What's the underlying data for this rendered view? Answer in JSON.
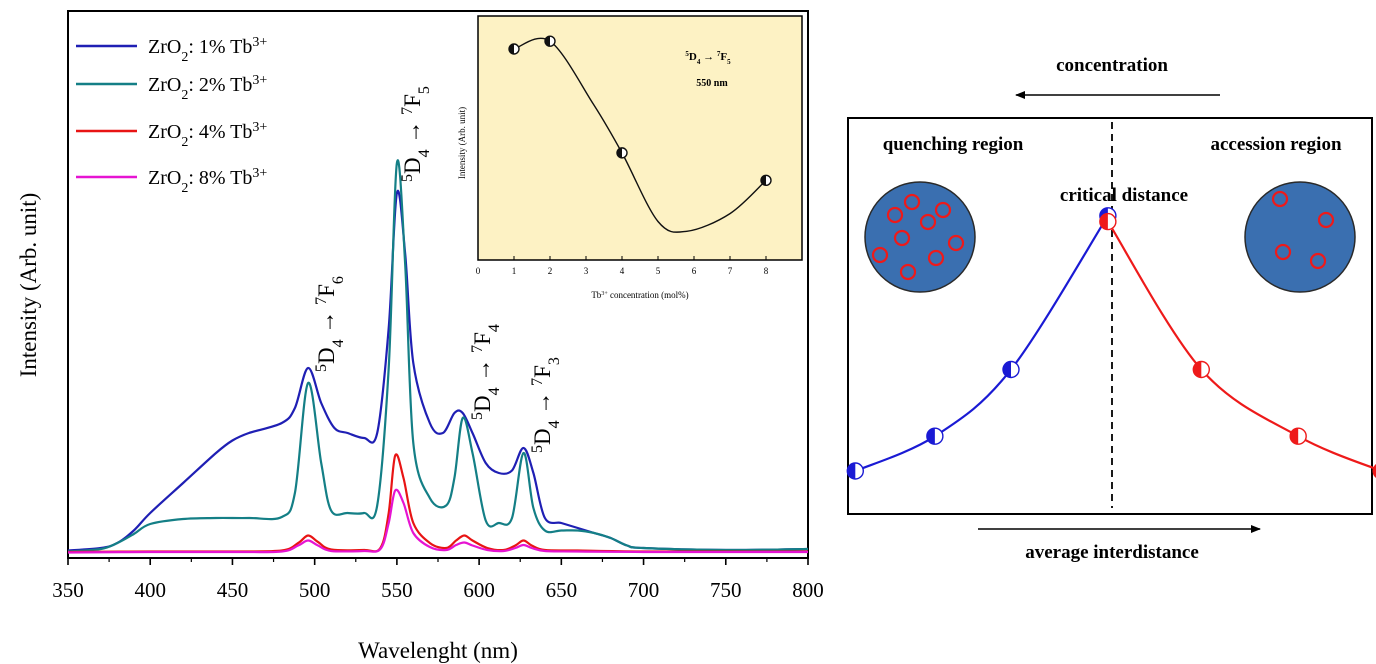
{
  "chart_data": [
    {
      "type": "line",
      "xlabel": "Wavelenght (nm)",
      "ylabel": "Intensity (Arb. unit)",
      "xlim": [
        350,
        800
      ],
      "xticks": [
        350,
        400,
        450,
        500,
        550,
        600,
        650,
        700,
        750,
        800
      ],
      "y_ticks_shown": false,
      "legend_position": "top-left",
      "peak_labels": [
        {
          "upper": "5",
          "main": "D",
          "sub": "4",
          "arrow": " → ",
          "upper2": "7",
          "main2": "F",
          "sub2": "6",
          "x": 496
        },
        {
          "upper": "5",
          "main": "D",
          "sub": "4",
          "arrow": " → ",
          "upper2": "7",
          "main2": "F",
          "sub2": "5",
          "x": 550
        },
        {
          "upper": "5",
          "main": "D",
          "sub": "4",
          "arrow": " → ",
          "upper2": "7",
          "main2": "F",
          "sub2": "4",
          "x": 590
        },
        {
          "upper": "5",
          "main": "D",
          "sub": "4",
          "arrow": " → ",
          "upper2": "7",
          "main2": "F",
          "sub2": "3",
          "x": 627
        }
      ],
      "series": [
        {
          "name_main": "ZrO",
          "name_sub": "2",
          "name_rest": ": 1% Tb",
          "name_sup": "3+",
          "color": "#1f1fb4",
          "points": [
            [
              350,
              0.5
            ],
            [
              370,
              1
            ],
            [
              380,
              2
            ],
            [
              390,
              4.5
            ],
            [
              400,
              8
            ],
            [
              420,
              14
            ],
            [
              440,
              20
            ],
            [
              450,
              22.5
            ],
            [
              460,
              24
            ],
            [
              480,
              26
            ],
            [
              488,
              29
            ],
            [
              496,
              37
            ],
            [
              504,
              30
            ],
            [
              512,
              25
            ],
            [
              520,
              24
            ],
            [
              530,
              23
            ],
            [
              538,
              24
            ],
            [
              545,
              45
            ],
            [
              550,
              72
            ],
            [
              555,
              60
            ],
            [
              560,
              38
            ],
            [
              570,
              26
            ],
            [
              578,
              24
            ],
            [
              585,
              28
            ],
            [
              590,
              28
            ],
            [
              596,
              24
            ],
            [
              604,
              18
            ],
            [
              612,
              16
            ],
            [
              620,
              16.5
            ],
            [
              627,
              21
            ],
            [
              633,
              16
            ],
            [
              640,
              7
            ],
            [
              650,
              6
            ],
            [
              660,
              5
            ],
            [
              670,
              4
            ],
            [
              680,
              3
            ],
            [
              690,
              1.5
            ],
            [
              700,
              1
            ],
            [
              750,
              0.6
            ],
            [
              800,
              0.8
            ]
          ]
        },
        {
          "name_main": "ZrO",
          "name_sub": "2",
          "name_rest": ": 2% Tb",
          "name_sup": "3+",
          "color": "#147f86",
          "points": [
            [
              350,
              0.3
            ],
            [
              370,
              0.8
            ],
            [
              380,
              2
            ],
            [
              390,
              3.8
            ],
            [
              400,
              5.8
            ],
            [
              420,
              6.8
            ],
            [
              440,
              7
            ],
            [
              460,
              7
            ],
            [
              480,
              7.2
            ],
            [
              488,
              12
            ],
            [
              496,
              34
            ],
            [
              504,
              18
            ],
            [
              510,
              8.5
            ],
            [
              520,
              8
            ],
            [
              530,
              8
            ],
            [
              538,
              9.5
            ],
            [
              545,
              37
            ],
            [
              550,
              78
            ],
            [
              555,
              58
            ],
            [
              560,
              22
            ],
            [
              570,
              11
            ],
            [
              580,
              9.5
            ],
            [
              585,
              15
            ],
            [
              590,
              27
            ],
            [
              596,
              20
            ],
            [
              604,
              6.5
            ],
            [
              612,
              6
            ],
            [
              620,
              7
            ],
            [
              627,
              20
            ],
            [
              633,
              9
            ],
            [
              640,
              4.5
            ],
            [
              650,
              4.5
            ],
            [
              660,
              4.5
            ],
            [
              670,
              4
            ],
            [
              680,
              3
            ],
            [
              690,
              1.5
            ],
            [
              700,
              1
            ],
            [
              750,
              0.6
            ],
            [
              800,
              0.8
            ]
          ]
        },
        {
          "name_main": "ZrO",
          "name_sub": "2",
          "name_rest": ": 4% Tb",
          "name_sup": "3+",
          "color": "#e81414",
          "points": [
            [
              350,
              0.2
            ],
            [
              400,
              0.3
            ],
            [
              450,
              0.3
            ],
            [
              480,
              0.5
            ],
            [
              490,
              2
            ],
            [
              496,
              3.5
            ],
            [
              502,
              2.2
            ],
            [
              510,
              0.7
            ],
            [
              530,
              0.6
            ],
            [
              540,
              1
            ],
            [
              545,
              8
            ],
            [
              549,
              19.5
            ],
            [
              554,
              15
            ],
            [
              560,
              6
            ],
            [
              570,
              2
            ],
            [
              580,
              1
            ],
            [
              586,
              2.5
            ],
            [
              591,
              3.5
            ],
            [
              596,
              2.5
            ],
            [
              605,
              1
            ],
            [
              615,
              0.6
            ],
            [
              622,
              1.5
            ],
            [
              627,
              2.5
            ],
            [
              632,
              1.5
            ],
            [
              640,
              0.6
            ],
            [
              660,
              0.5
            ],
            [
              700,
              0.3
            ],
            [
              800,
              0.3
            ]
          ]
        },
        {
          "name_main": "ZrO",
          "name_sub": "2",
          "name_rest": ": 8% Tb",
          "name_sup": "3+",
          "color": "#e614d2",
          "points": [
            [
              350,
              0.1
            ],
            [
              400,
              0.2
            ],
            [
              450,
              0.2
            ],
            [
              480,
              0.3
            ],
            [
              490,
              1.5
            ],
            [
              496,
              2.5
            ],
            [
              502,
              1.5
            ],
            [
              510,
              0.4
            ],
            [
              530,
              0.4
            ],
            [
              540,
              0.8
            ],
            [
              545,
              6
            ],
            [
              549,
              12.5
            ],
            [
              554,
              10
            ],
            [
              560,
              4
            ],
            [
              570,
              1.2
            ],
            [
              580,
              0.6
            ],
            [
              586,
              1.6
            ],
            [
              591,
              2.1
            ],
            [
              596,
              1.5
            ],
            [
              605,
              0.6
            ],
            [
              615,
              0.4
            ],
            [
              622,
              1
            ],
            [
              627,
              1.6
            ],
            [
              632,
              1
            ],
            [
              640,
              0.4
            ],
            [
              660,
              0.3
            ],
            [
              700,
              0.2
            ],
            [
              800,
              0.2
            ]
          ]
        }
      ]
    },
    {
      "type": "line",
      "panel": "inset",
      "xlabel_sup": "3+",
      "xlabel_pre": "Tb",
      "xlabel_post": " concentration (mol%)",
      "ylabel": "Intensity (Arb. unit)",
      "xlim": [
        0,
        9
      ],
      "xticks": [
        0,
        1,
        2,
        3,
        4,
        5,
        6,
        7,
        8
      ],
      "background": "#fdf2c4",
      "annotation_lines": [
        {
          "upper": "5",
          "main": "D",
          "sub": "4",
          "arrow": " → ",
          "upper2": "7",
          "main2": "F",
          "sub2": "5"
        },
        {
          "text": "550 nm"
        }
      ],
      "points": [
        [
          1,
          1.0
        ],
        [
          2,
          1.04
        ],
        [
          4,
          0.47
        ],
        [
          8,
          0.33
        ]
      ],
      "fit_min": [
        5.8,
        0.07
      ],
      "y_ticks_shown": false
    },
    {
      "type": "line",
      "panel": "schematic",
      "top_arrow_label": "concentration",
      "bottom_arrow_label": "average interdistance",
      "left_region_label": "quenching region",
      "right_region_label": "accession region",
      "center_label": "critical distance",
      "colors": {
        "left_curve": "#1a1ad4",
        "right_curve": "#ee1a1a",
        "circle_fill": "#3a6fb0"
      },
      "left_points": [
        [
          0.05,
          0.1
        ],
        [
          0.28,
          0.22
        ],
        [
          0.5,
          0.45
        ],
        [
          0.78,
          0.98
        ]
      ],
      "right_points": [
        [
          0.78,
          0.96
        ],
        [
          1.05,
          0.45
        ],
        [
          1.33,
          0.22
        ],
        [
          1.57,
          0.1
        ]
      ],
      "left_dots": 9,
      "right_dots": 4
    }
  ]
}
